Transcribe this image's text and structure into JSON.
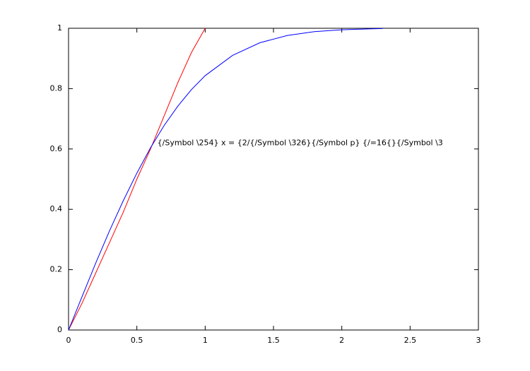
{
  "chart_data": {
    "type": "line",
    "annotation": "{/Symbol \\254} x = {2/{/Symbol \\326}{/Symbol p} {/=16{}{/Symbol \\3",
    "annotation_at": [
      0.65,
      0.62
    ],
    "xlim": [
      0,
      3
    ],
    "ylim": [
      0,
      1
    ],
    "xticks": [
      0,
      0.5,
      1,
      1.5,
      2,
      2.5,
      3
    ],
    "yticks": [
      0,
      0.2,
      0.4,
      0.6,
      0.8,
      1
    ],
    "grid": false,
    "series": [
      {
        "color": "#ff0000",
        "x": [
          0,
          0.1,
          0.2,
          0.3,
          0.4,
          0.5,
          0.6,
          0.7,
          0.8,
          0.9,
          1
        ],
        "values": [
          0,
          0.09,
          0.19,
          0.29,
          0.39,
          0.5,
          0.6,
          0.71,
          0.82,
          0.92,
          1
        ]
      },
      {
        "color": "#0000ff",
        "x": [
          0,
          0.1,
          0.2,
          0.3,
          0.4,
          0.5,
          0.6,
          0.7,
          0.8,
          0.9,
          1,
          1.2,
          1.4,
          1.6,
          1.8,
          2,
          2.2,
          2.3
        ],
        "values": [
          0,
          0.112,
          0.223,
          0.329,
          0.428,
          0.52,
          0.604,
          0.678,
          0.742,
          0.797,
          0.843,
          0.91,
          0.952,
          0.976,
          0.989,
          0.995,
          0.998,
          0.999
        ]
      }
    ]
  }
}
